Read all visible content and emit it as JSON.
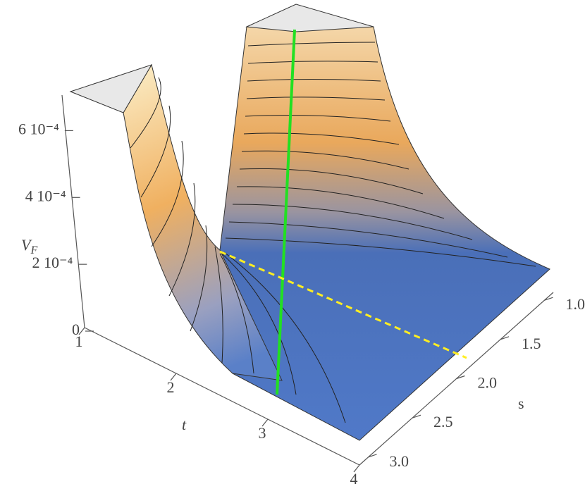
{
  "chart_data": {
    "type": "surface3d",
    "zlabel": {
      "base": "V",
      "subscript": "F"
    },
    "xlabel": "t",
    "ylabel": "s",
    "xlim": [
      1,
      4
    ],
    "xticks": [
      1,
      2,
      3,
      4
    ],
    "ylim": [
      0.9,
      3.1
    ],
    "yticks": [
      {
        "value": 1,
        "label": "1.0"
      },
      1.5,
      {
        "value": 2,
        "label": "2.0"
      },
      2.5,
      {
        "value": 3,
        "label": "3.0"
      }
    ],
    "zlim": [
      0,
      0.0007
    ],
    "zticks": [
      0,
      {
        "value": 0.0002,
        "label": "2 10⁻⁴"
      },
      {
        "value": 0.0004,
        "label": "4 10⁻⁴"
      },
      {
        "value": 0.0006,
        "label": "6 10⁻⁴"
      }
    ]
  }
}
